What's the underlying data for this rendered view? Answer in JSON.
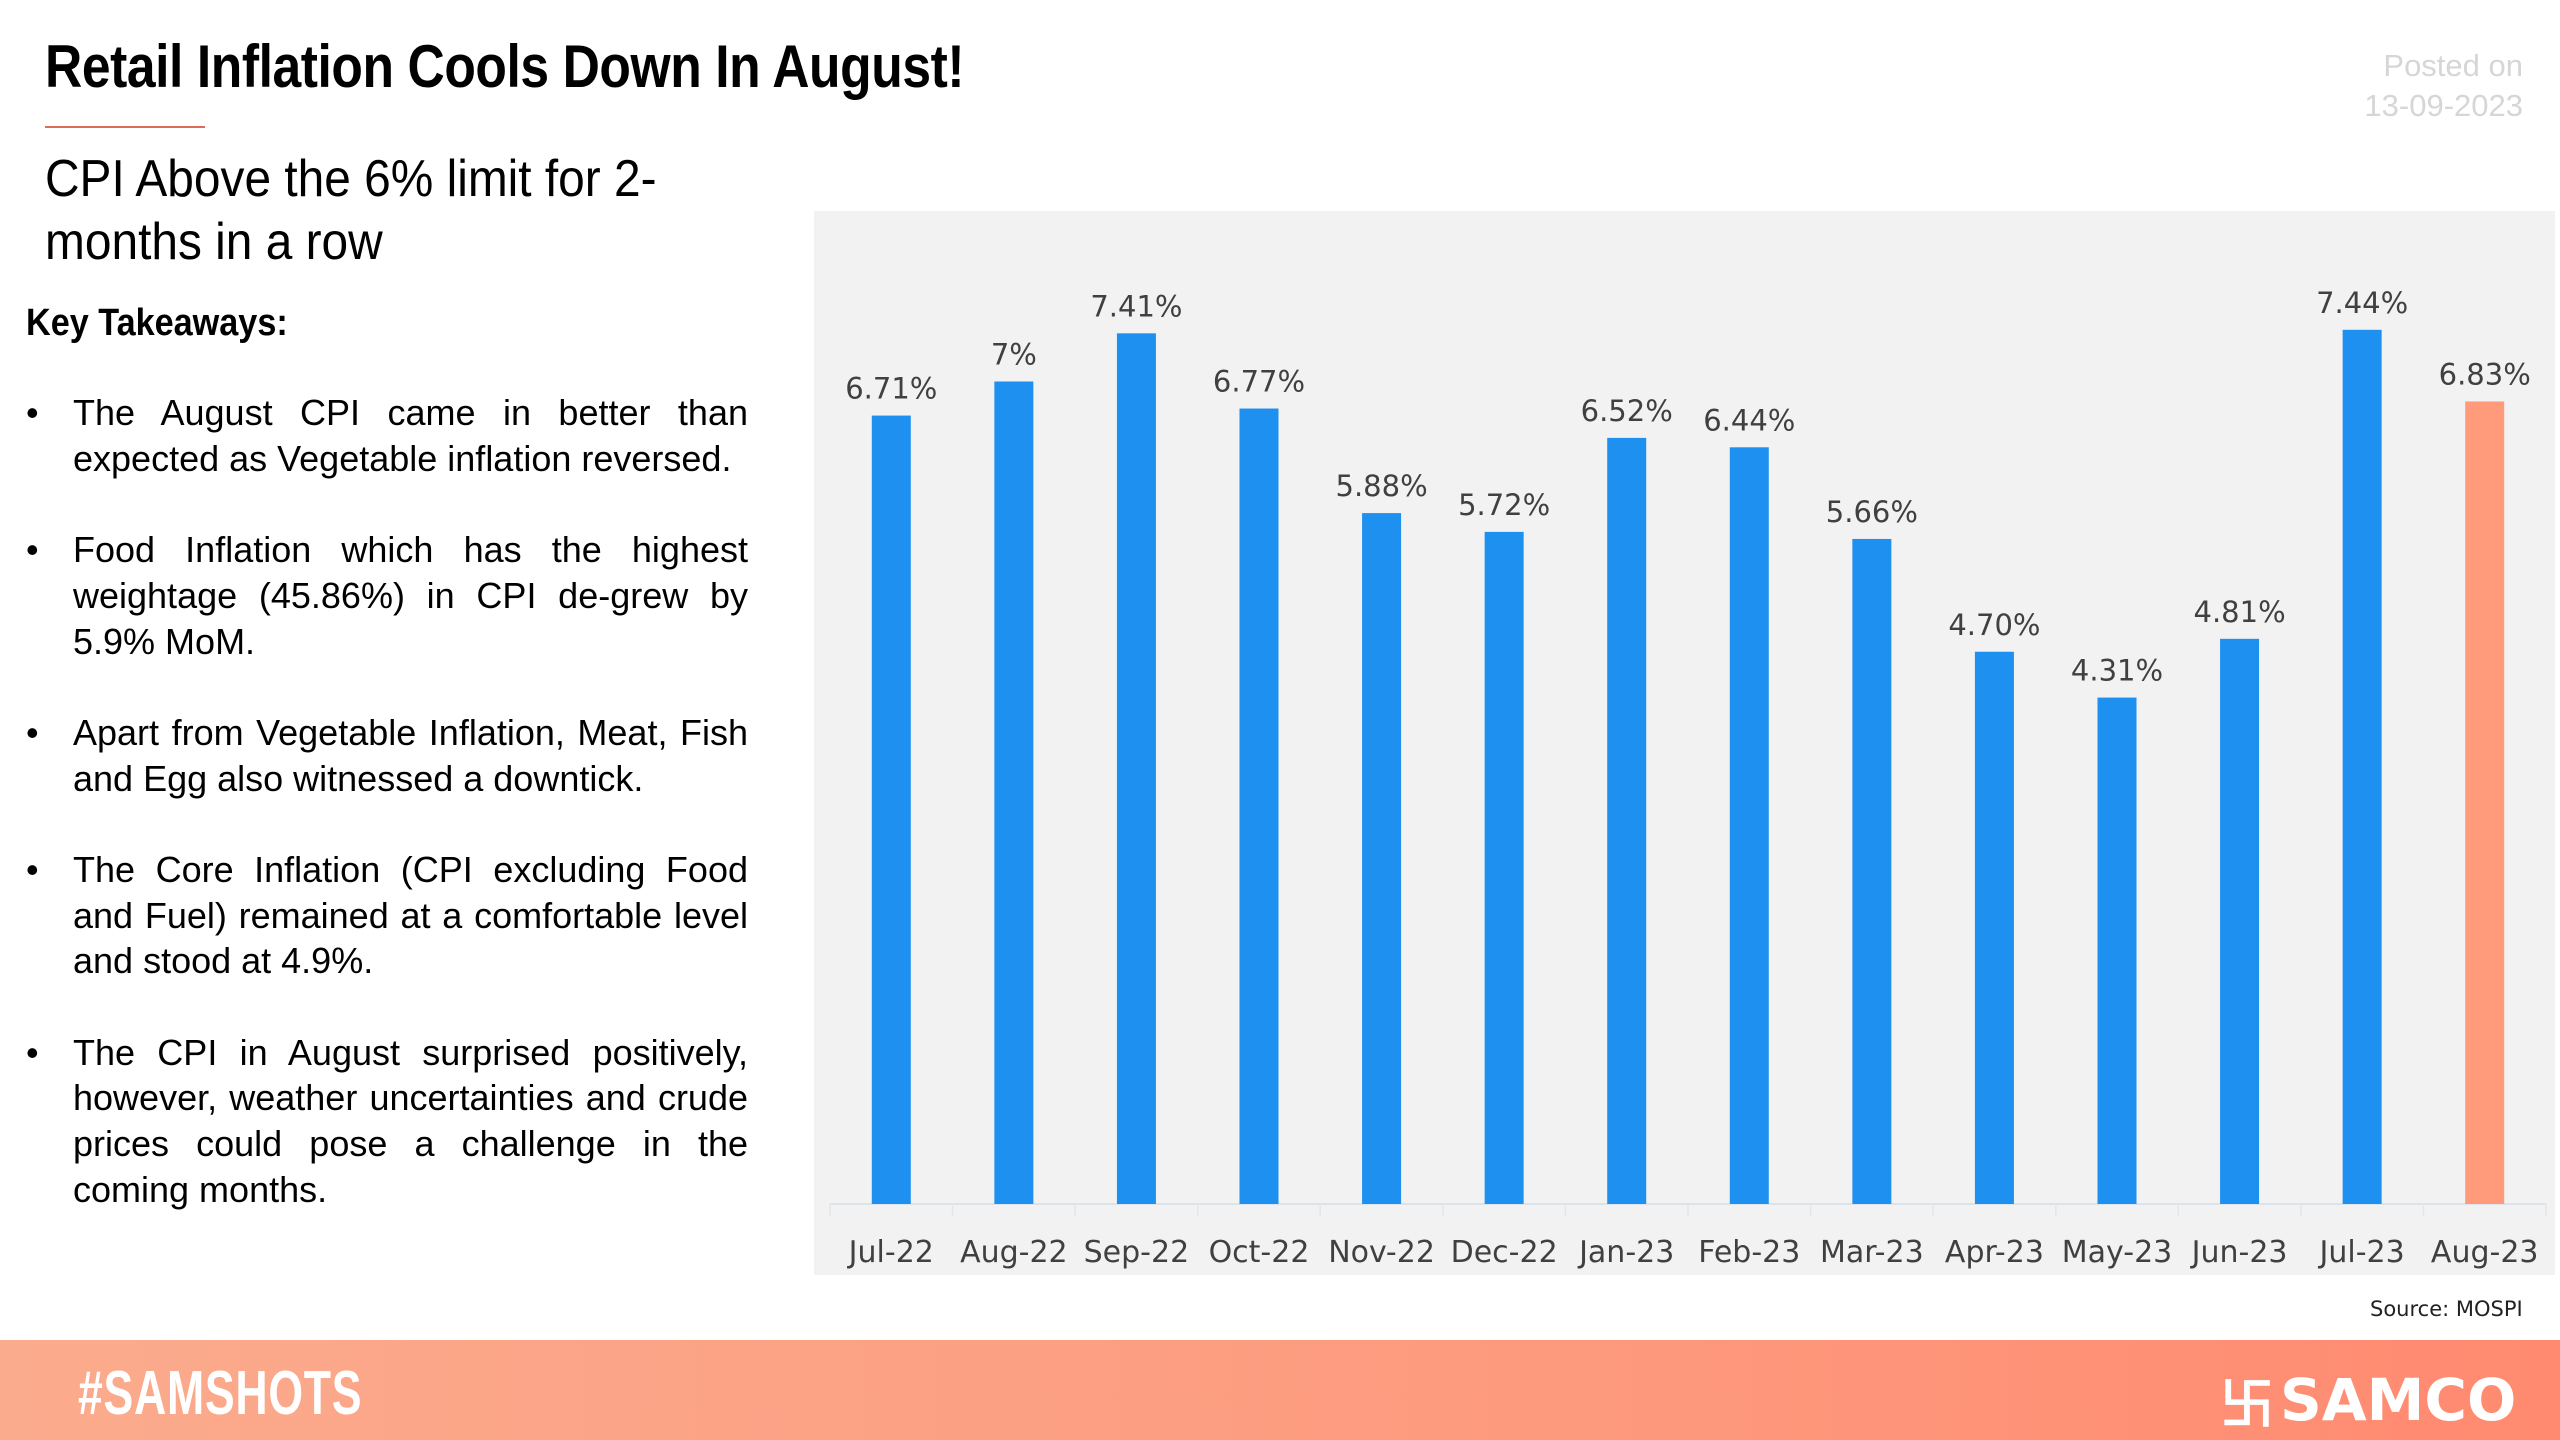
{
  "header": {
    "title": "Retail Inflation Cools Down In August!",
    "posted_label": "Posted on",
    "posted_date": "13-09-2023",
    "subtitle": "CPI Above the 6% limit for 2-months in a row"
  },
  "takeaways": {
    "heading": "Key Takeaways:",
    "items": [
      "The August CPI came in better than expected as Vegetable inflation reversed.",
      "Food Inflation which has the highest weightage (45.86%) in CPI de-grew by 5.9% MoM.",
      "Apart from Vegetable Inflation, Meat, Fish and Egg also witnessed a downtick.",
      "The Core Inflation (CPI excluding Food and Fuel) remained at a comfortable level and stood at 4.9%.",
      "The CPI in August surprised positively, however, weather uncertainties and crude prices could pose a challenge in the coming months."
    ]
  },
  "chart_data": {
    "type": "bar",
    "categories": [
      "Jul-22",
      "Aug-22",
      "Sep-22",
      "Oct-22",
      "Nov-22",
      "Dec-22",
      "Jan-23",
      "Feb-23",
      "Mar-23",
      "Apr-23",
      "May-23",
      "Jun-23",
      "Jul-23",
      "Aug-23"
    ],
    "values": [
      6.71,
      7.0,
      7.41,
      6.77,
      5.88,
      5.72,
      6.52,
      6.44,
      5.66,
      4.7,
      4.31,
      4.81,
      7.44,
      6.83
    ],
    "data_labels": [
      "6.71%",
      "7%",
      "7.41%",
      "6.77%",
      "5.88%",
      "5.72%",
      "6.52%",
      "6.44%",
      "5.66%",
      "4.70%",
      "4.31%",
      "4.81%",
      "7.44%",
      "6.83%"
    ],
    "ylim": [
      0,
      8
    ],
    "grid": false,
    "colors": {
      "default": "#1e90f0",
      "highlight": "#ff9a7a",
      "background": "#f2f2f2"
    },
    "highlight_index": 13,
    "source": "Source: MOSPI"
  },
  "footer": {
    "hashtag": "#SAMSHOTS",
    "brand": "SAMCO",
    "brand_icon": "samco-swastik-logo-icon"
  }
}
